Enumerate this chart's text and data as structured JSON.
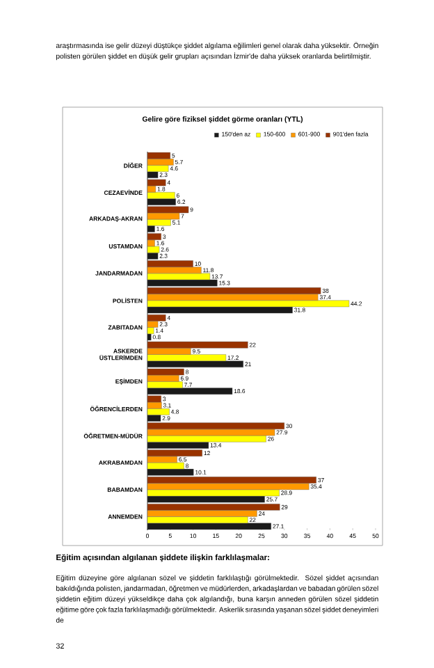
{
  "chart_data": {
    "type": "bar",
    "orientation": "horizontal",
    "title": "Gelire göre fiziksel şiddet görme oranları (YTL)",
    "categories": [
      "DİĞER",
      "CEZAEVİNDE",
      "ARKADAŞ-AKRAN",
      "USTAMDAN",
      "JANDARMADAN",
      "POLİSTEN",
      "ZABITADAN",
      "ASKERDE ÜSTLERİMDEN",
      "EŞİMDEN",
      "ÖĞRENCİLERDEN",
      "ÖĞRETMEN-MÜDÜR",
      "AKRABAMDAN",
      "BABAMDAN",
      "ANNEMDEN"
    ],
    "series": [
      {
        "name": "150'den az",
        "color": "#1a1a1a",
        "values": [
          2.3,
          6.2,
          1.6,
          2.3,
          15.3,
          31.8,
          0.8,
          21,
          18.6,
          2.9,
          13.4,
          10.1,
          25.7,
          27.1
        ]
      },
      {
        "name": "150-600",
        "color": "#ffff00",
        "values": [
          4.6,
          6,
          5.1,
          2.6,
          13.7,
          44.2,
          1.4,
          17.2,
          7.7,
          4.8,
          26,
          8,
          28.9,
          22
        ]
      },
      {
        "name": "601-900",
        "color": "#ff9900",
        "values": [
          5.7,
          1.8,
          7,
          1.6,
          11.8,
          37.4,
          2.3,
          9.5,
          6.9,
          3.1,
          27.9,
          6.5,
          35.4,
          24
        ]
      },
      {
        "name": "901'den fazla",
        "color": "#993300",
        "values": [
          5,
          4,
          9,
          3,
          10,
          38,
          4,
          22,
          8,
          3,
          30,
          12,
          37,
          29
        ]
      }
    ],
    "xlim": [
      0,
      50
    ],
    "xticks": [
      0,
      5,
      10,
      15,
      20,
      25,
      30,
      35,
      40,
      45,
      50
    ],
    "data_labels": true,
    "legend": "top right",
    "grid": false,
    "annotations": [
      "araştırmasında ise gelir düzeyi düştükçe şiddet algılama eğilimleri genel olarak daha yüksektir. Örneğin polisten görülen şiddet en düşük gelir grupları açısından İzmir'de daha yüksek oranlarda belirtilmiştir.",
      "Eğitim açısından algılanan şiddete ilişkin farklılaşmalar:",
      "Eğitim düzeyine göre algılanan sözel ve şiddetin farklılaştığı görülmektedir. Sözel şiddet açısından bakıldığında polisten, jandarmadan, öğretmen ve müdürlerden, arkadaşlardan ve babadan görülen sözel şiddetin eğitim düzeyi yükseldikçe daha çok algılandığı, buna karşın anneden görülen sözel şiddetin eğitime göre çok fazla farklılaşmadığı görülmektedir. Askerlik sırasında yaşanan sözel şiddet deneyimleri de",
      "32"
    ]
  }
}
